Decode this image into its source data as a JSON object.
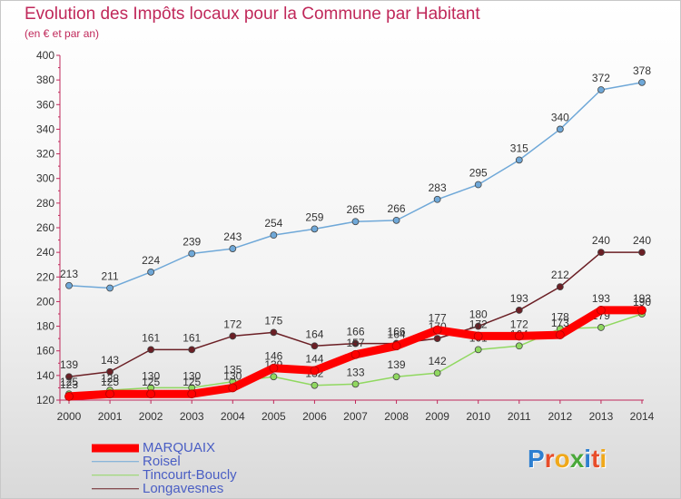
{
  "header": {
    "title": "Evolution des Impôts locaux pour la Commune par Habitant",
    "subtitle": "(en € et par an)"
  },
  "colors": {
    "title": "#c0285a",
    "axis": "#c0285a",
    "legend_text": "#4a5ec4"
  },
  "chart_data": {
    "type": "line",
    "title": "Evolution des Impôts locaux pour la Commune par Habitant",
    "subtitle": "(en € et par an)",
    "x": [
      2000,
      2001,
      2002,
      2003,
      2004,
      2005,
      2006,
      2007,
      2008,
      2009,
      2010,
      2011,
      2012,
      2013,
      2014
    ],
    "ylim": [
      120,
      400
    ],
    "yticks": [
      120,
      140,
      160,
      180,
      200,
      220,
      240,
      260,
      280,
      300,
      320,
      340,
      360,
      380,
      400
    ],
    "grid": false,
    "legend_position": "bottom-left",
    "series": [
      {
        "name": "Roisel",
        "color": "#6fa8d8",
        "values": [
          213,
          211,
          224,
          239,
          243,
          254,
          259,
          265,
          266,
          283,
          295,
          315,
          340,
          372,
          378
        ]
      },
      {
        "name": "Longavesnes",
        "color": "#6b1f25",
        "values": [
          139,
          143,
          161,
          161,
          172,
          175,
          164,
          166,
          166,
          170,
          180,
          193,
          212,
          240,
          240
        ]
      },
      {
        "name": "Tincourt-Boucly",
        "color": "#90d860",
        "values": [
          125,
          128,
          130,
          130,
          135,
          139,
          132,
          133,
          139,
          142,
          161,
          164,
          178,
          179,
          190
        ]
      },
      {
        "name": "MARQUAIX",
        "color": "#ff0000",
        "values": [
          123,
          125,
          125,
          125,
          130,
          146,
          144,
          157,
          164,
          177,
          172,
          172,
          173,
          193,
          193
        ]
      }
    ]
  },
  "legend": [
    {
      "label": "MARQUAIX",
      "color": "#ff0000",
      "weight": 9
    },
    {
      "label": "Roisel",
      "color": "#6fa8d8",
      "weight": 1.5
    },
    {
      "label": "Tincourt-Boucly",
      "color": "#90d860",
      "weight": 1.5
    },
    {
      "label": "Longavesnes",
      "color": "#6b1f25",
      "weight": 1.5
    }
  ],
  "logo": {
    "text": "Proxiti",
    "letter_colors": [
      "#2e7fd0",
      "#e84d2a",
      "#f0a81a",
      "#4aa83a",
      "#2e7fd0",
      "#e84d2a",
      "#f0a81a"
    ]
  }
}
